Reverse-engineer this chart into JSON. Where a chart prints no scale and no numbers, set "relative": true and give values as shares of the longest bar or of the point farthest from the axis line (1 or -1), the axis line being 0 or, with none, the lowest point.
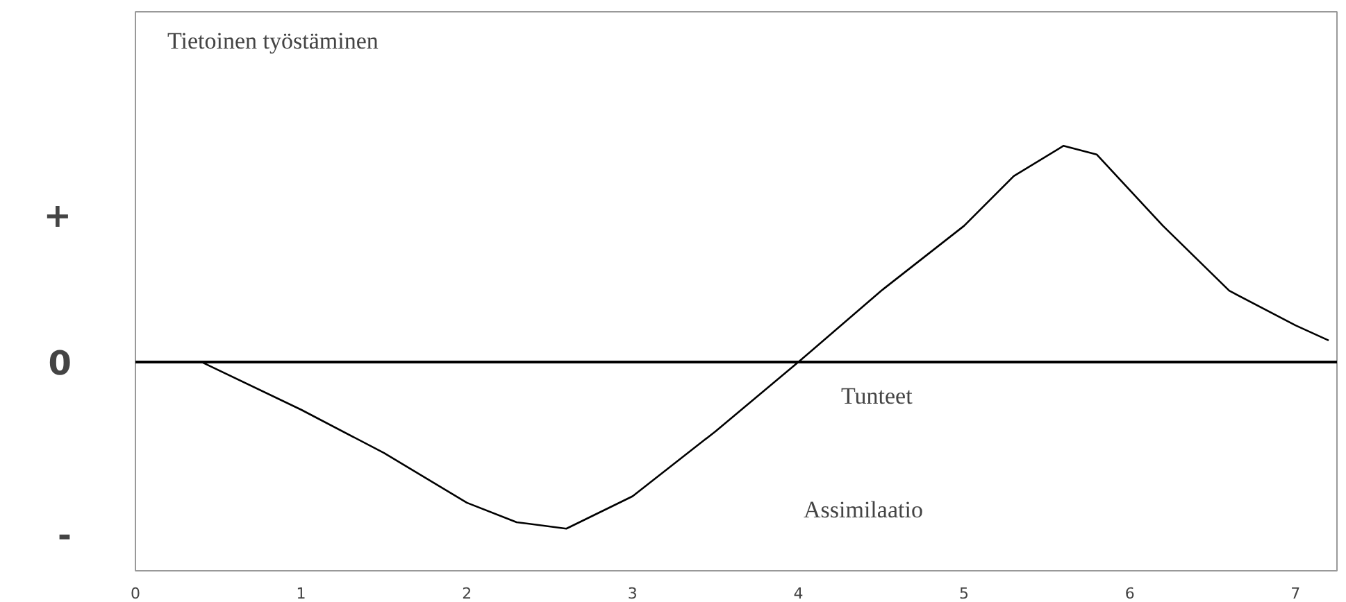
{
  "chart_data": {
    "type": "line",
    "relative": true,
    "x": [
      0.4,
      1,
      1.5,
      2,
      2.3,
      2.6,
      3,
      3.5,
      4,
      4.5,
      5,
      5.3,
      5.6,
      5.8,
      6.2,
      6.6,
      7,
      7.2
    ],
    "series": [
      {
        "color": "#000000",
        "values": [
          0,
          -0.22,
          -0.42,
          -0.65,
          -0.74,
          -0.77,
          -0.62,
          -0.32,
          0,
          0.33,
          0.63,
          0.86,
          1,
          0.96,
          0.63,
          0.33,
          0.17,
          0.1
        ]
      }
    ],
    "xlim": [
      0,
      7.25
    ],
    "xticks": [
      0,
      1,
      2,
      3,
      4,
      5,
      6,
      7
    ],
    "ref_lines": [
      {
        "axis": "y",
        "value": 0,
        "color": "#000000"
      }
    ],
    "annotations": [
      "Tietoinen työstäminen",
      "Tunteet",
      "Assimilaatio",
      "+",
      "0",
      "-"
    ],
    "grid": false,
    "marker": "none",
    "line_style": "solid"
  }
}
